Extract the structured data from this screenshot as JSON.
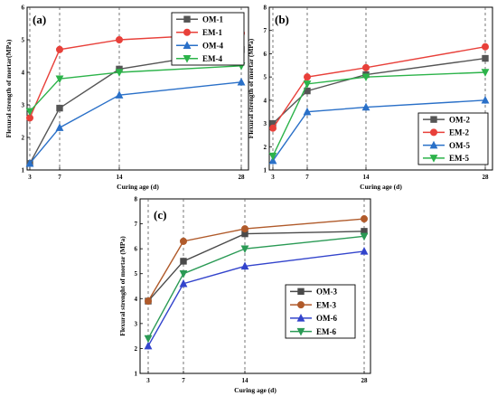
{
  "colors": {
    "OM": "#555555",
    "EM": "#e8403a",
    "OM_alt": "#2a70c8",
    "EM_alt": "#2cb34a",
    "OM3_line": "#4a4a4a",
    "EM3_line": "#b05a2a",
    "OM6_line": "#3344cc",
    "EM6_line": "#2a9a55"
  },
  "chart_data": [
    {
      "type": "line",
      "panel_label": "(a)",
      "xlabel": "Curing age (d)",
      "ylabel": "Flexural strength of mortar(MPa)",
      "x": [
        3,
        7,
        14,
        28
      ],
      "x_ticks": [
        "3",
        "7",
        "14",
        "28"
      ],
      "ylim": [
        1,
        6
      ],
      "y_ticks": [
        "1",
        "2",
        "3",
        "4",
        "5",
        "6"
      ],
      "grid": "vertical dashed lines at data ages",
      "legend_position": "top-right",
      "series": [
        {
          "name": "OM-1",
          "marker": "square",
          "color_key": "OM",
          "values": [
            1.2,
            2.9,
            4.1,
            4.7
          ]
        },
        {
          "name": "EM-1",
          "marker": "circle",
          "color_key": "EM",
          "values": [
            2.6,
            4.7,
            5.0,
            5.2
          ]
        },
        {
          "name": "OM-4",
          "marker": "triangle-up",
          "color_key": "OM_alt",
          "values": [
            1.2,
            2.3,
            3.3,
            3.7
          ]
        },
        {
          "name": "EM-4",
          "marker": "triangle-down",
          "color_key": "EM_alt",
          "values": [
            2.8,
            3.8,
            4.0,
            4.2
          ]
        }
      ]
    },
    {
      "type": "line",
      "panel_label": "(b)",
      "xlabel": "Curing age (d)",
      "ylabel": "Flexural strength of mortar (MPa)",
      "x": [
        3,
        7,
        14,
        28
      ],
      "x_ticks": [
        "3",
        "7",
        "14",
        "28"
      ],
      "ylim": [
        1,
        8
      ],
      "y_ticks": [
        "1",
        "2",
        "3",
        "4",
        "5",
        "6",
        "7",
        "8"
      ],
      "grid": "vertical dashed lines at data ages",
      "legend_position": "bottom-right",
      "series": [
        {
          "name": "OM-2",
          "marker": "square",
          "color_key": "OM",
          "values": [
            3.0,
            4.4,
            5.1,
            5.8
          ]
        },
        {
          "name": "EM-2",
          "marker": "circle",
          "color_key": "EM",
          "values": [
            2.8,
            5.0,
            5.4,
            6.3
          ]
        },
        {
          "name": "OM-5",
          "marker": "triangle-up",
          "color_key": "OM_alt",
          "values": [
            1.4,
            3.5,
            3.7,
            4.0
          ]
        },
        {
          "name": "EM-5",
          "marker": "triangle-down",
          "color_key": "EM_alt",
          "values": [
            1.6,
            4.7,
            5.0,
            5.2
          ]
        }
      ]
    },
    {
      "type": "line",
      "panel_label": "(c)",
      "xlabel": "Curing age (d)",
      "ylabel": "Flexural strenght of mortar (MPa)",
      "x": [
        3,
        7,
        14,
        28
      ],
      "x_ticks": [
        "3",
        "7",
        "14",
        "28"
      ],
      "ylim": [
        1,
        8
      ],
      "y_ticks": [
        "1",
        "2",
        "3",
        "4",
        "5",
        "6",
        "7",
        "8"
      ],
      "grid": "vertical dashed lines at data ages",
      "legend_position": "center-left",
      "series": [
        {
          "name": "OM-3",
          "marker": "square",
          "color_key": "OM3_line",
          "values": [
            3.9,
            5.5,
            6.6,
            6.7
          ]
        },
        {
          "name": "EM-3",
          "marker": "circle",
          "color_key": "EM3_line",
          "values": [
            3.9,
            6.3,
            6.8,
            7.2
          ]
        },
        {
          "name": "OM-6",
          "marker": "triangle-up",
          "color_key": "OM6_line",
          "values": [
            2.1,
            4.6,
            5.3,
            5.9
          ]
        },
        {
          "name": "EM-6",
          "marker": "triangle-down",
          "color_key": "EM6_line",
          "values": [
            2.4,
            5.0,
            6.0,
            6.5
          ]
        }
      ]
    }
  ]
}
